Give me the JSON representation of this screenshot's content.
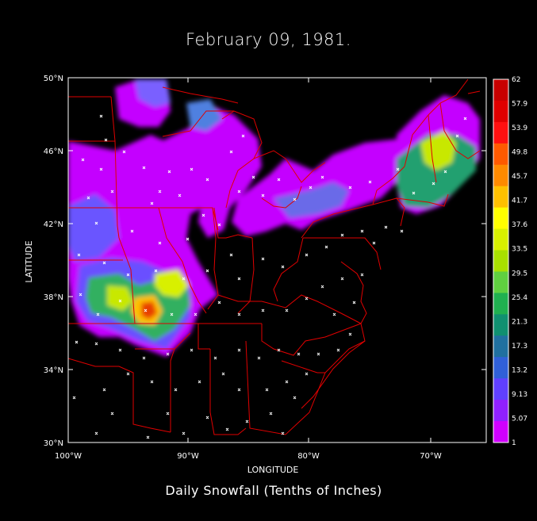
{
  "title": "February 09, 1981.",
  "bottom_title": "Daily Snowfall (Tenths of Inches)",
  "axes": {
    "xlabel": "LONGITUDE",
    "ylabel": "LATITUDE",
    "x_ticks": [
      "100°W",
      "90°W",
      "80°W",
      "70°W"
    ],
    "y_ticks": [
      "50°N",
      "46°N",
      "42°N",
      "38°N",
      "34°N",
      "30°N"
    ]
  },
  "colorbar": {
    "labels": [
      "62",
      "57.9",
      "53.9",
      "49.8",
      "45.7",
      "41.7",
      "37.6",
      "33.5",
      "29.5",
      "25.4",
      "21.3",
      "17.3",
      "13.2",
      "9.13",
      "5.07",
      "1"
    ],
    "colors": [
      "#c80000",
      "#e00000",
      "#ff1010",
      "#ff5a00",
      "#ff8a00",
      "#ffc000",
      "#ffff00",
      "#d8f000",
      "#a8e000",
      "#60d040",
      "#20b050",
      "#109070",
      "#2070a0",
      "#3060d8",
      "#6040ff",
      "#9020ff",
      "#d000ff"
    ]
  },
  "chart_data": {
    "type": "heatmap",
    "title": "February 09, 1981.",
    "xlabel": "LONGITUDE",
    "ylabel": "LATITUDE",
    "xlim": [
      -100,
      -66
    ],
    "ylim": [
      30,
      50
    ],
    "color_scale": [
      1,
      5.07,
      9.13,
      13.2,
      17.3,
      21.3,
      25.4,
      29.5,
      33.5,
      37.6,
      41.7,
      45.7,
      49.8,
      53.9,
      57.9,
      62
    ],
    "hotspots": [
      {
        "lon": -93.5,
        "lat": 37.5,
        "value": 55
      },
      {
        "lon": -95.5,
        "lat": 37.8,
        "value": 35
      },
      {
        "lon": -91.5,
        "lat": 38.8,
        "value": 40
      },
      {
        "lon": -69.5,
        "lat": 45.5,
        "value": 33
      }
    ]
  }
}
